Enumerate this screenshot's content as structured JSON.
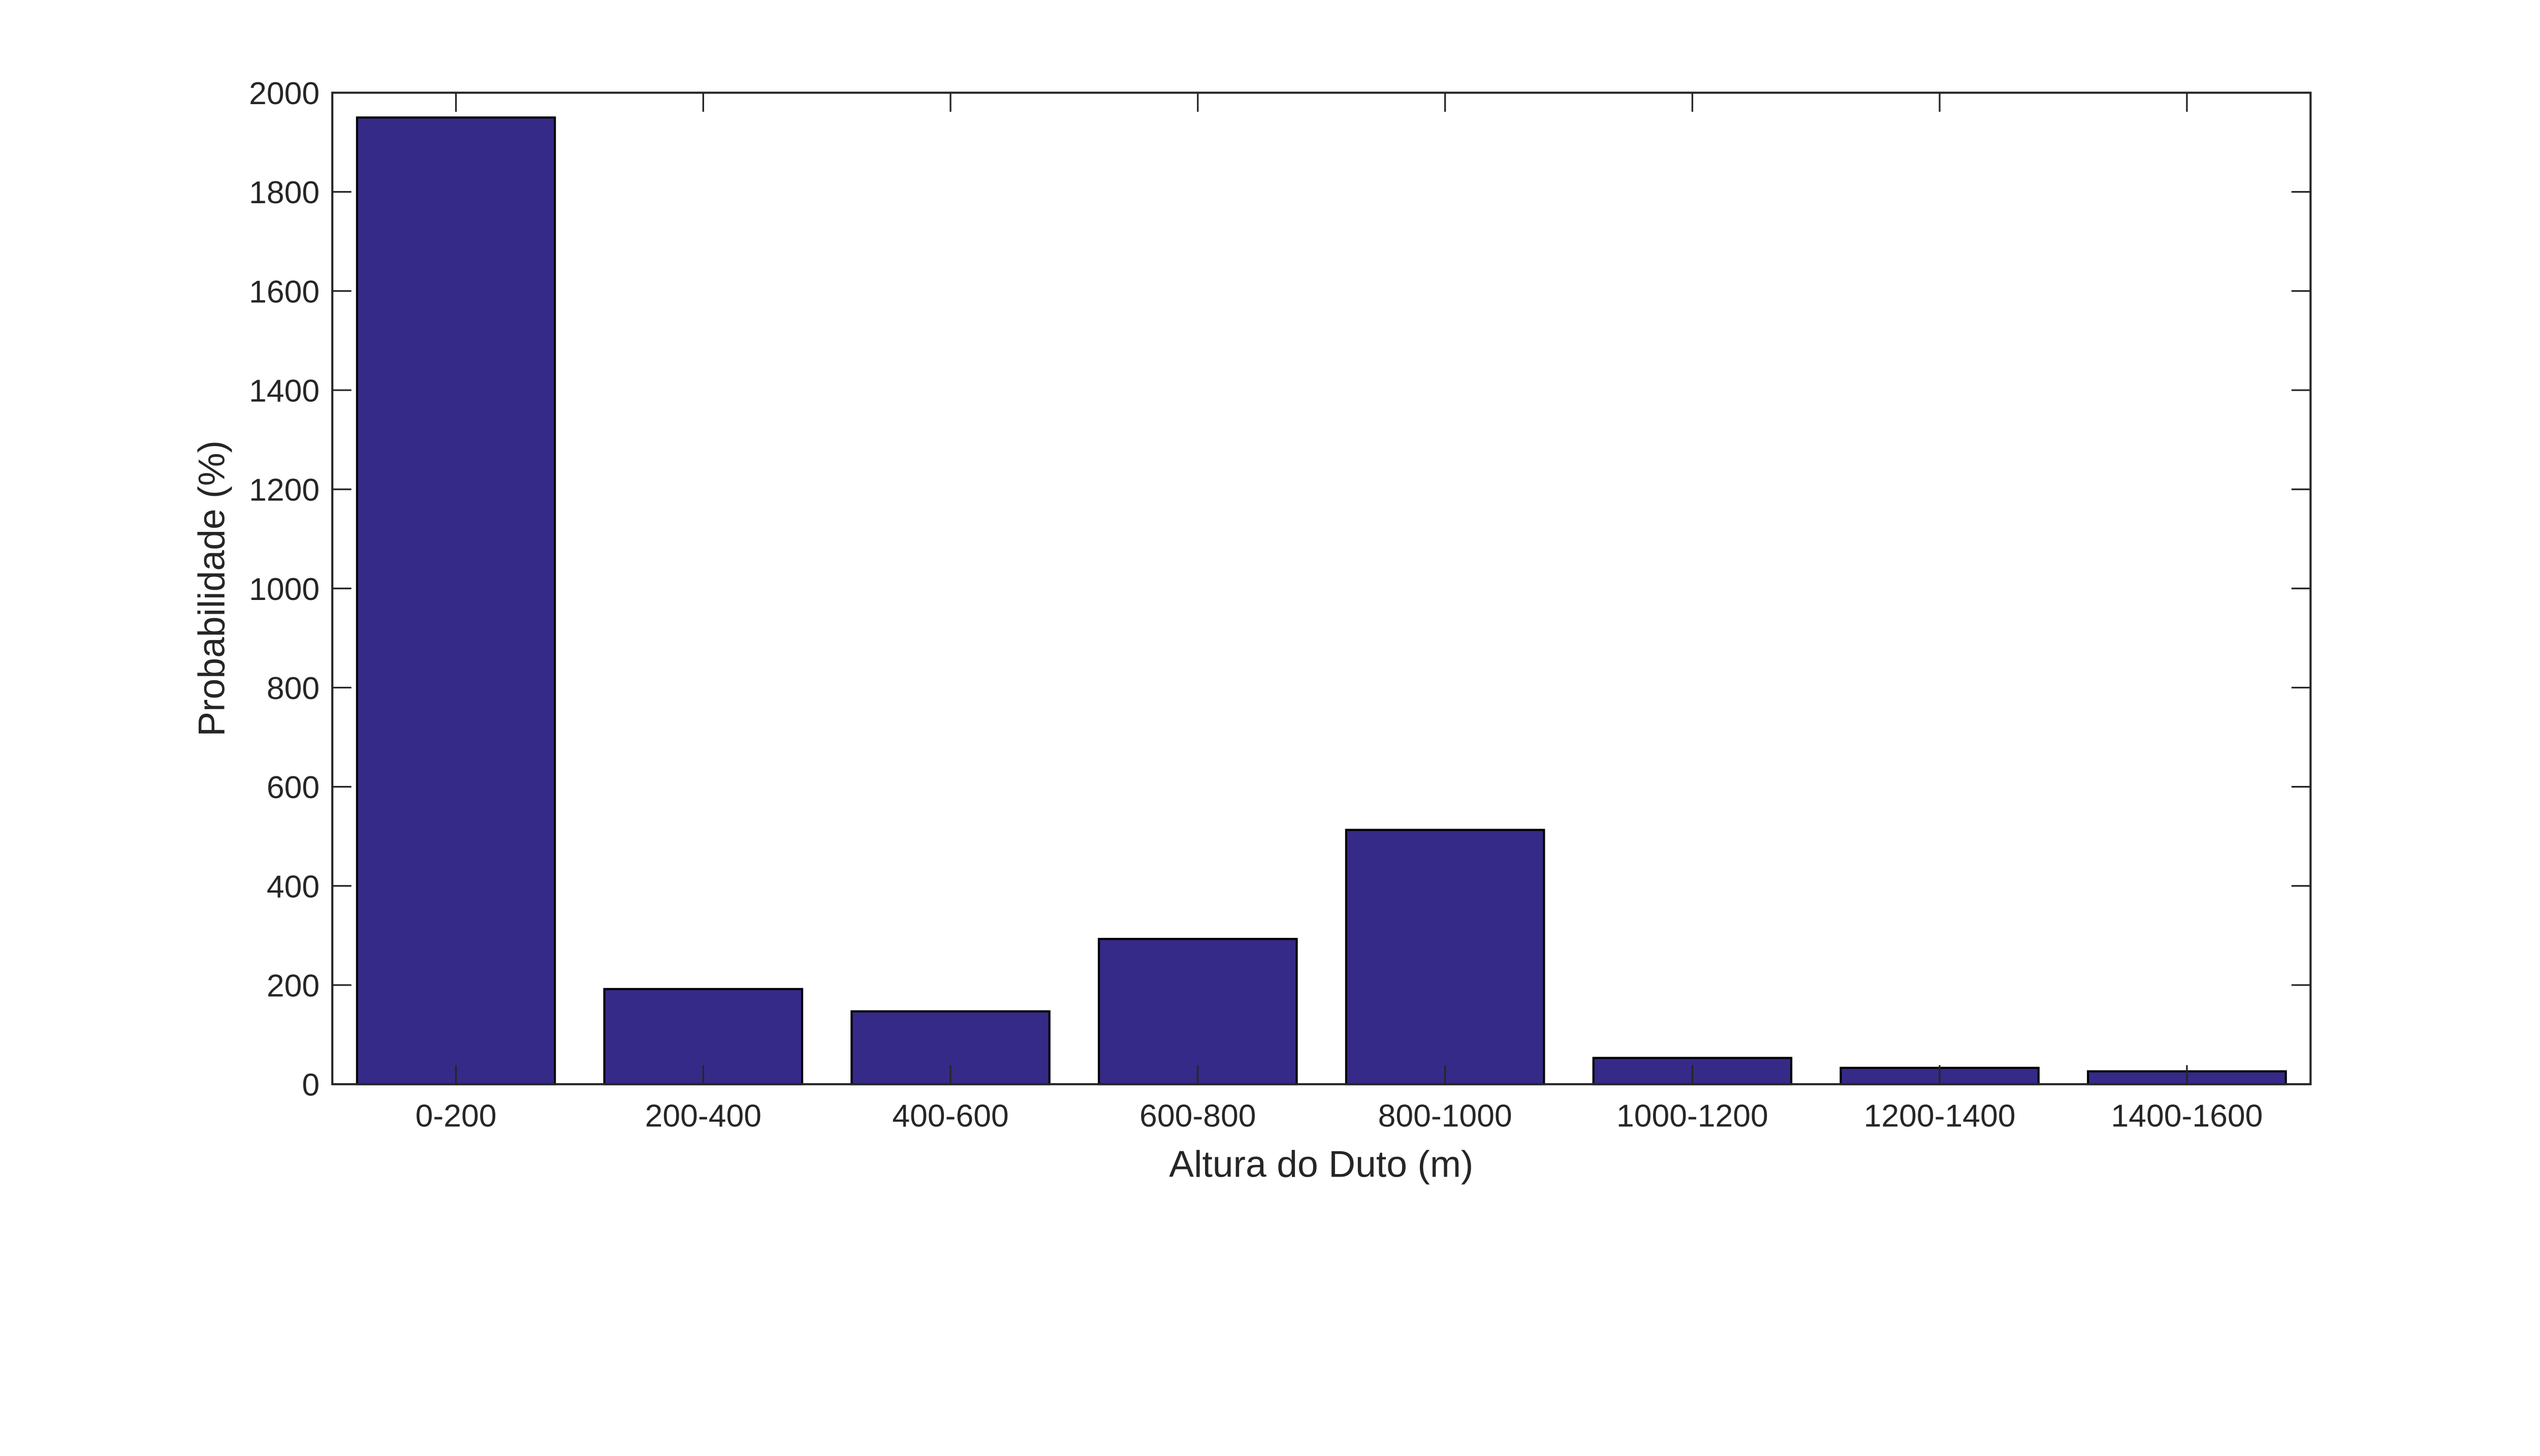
{
  "chart_data": {
    "type": "bar",
    "title": "",
    "xlabel": "Altura do Duto (m)",
    "ylabel": "Probabilidade (%)",
    "categories": [
      "0-200",
      "200-400",
      "400-600",
      "600-800",
      "800-1000",
      "1000-1200",
      "1200-1400",
      "1400-1600"
    ],
    "values": [
      1950,
      192,
      147,
      293,
      513,
      53,
      33,
      26
    ],
    "ylim": [
      0,
      2000
    ],
    "yticks": [
      0,
      200,
      400,
      600,
      800,
      1000,
      1200,
      1400,
      1600,
      1800,
      2000
    ],
    "grid": false,
    "bar_color": "#352a87",
    "edge_color": "#000000"
  }
}
